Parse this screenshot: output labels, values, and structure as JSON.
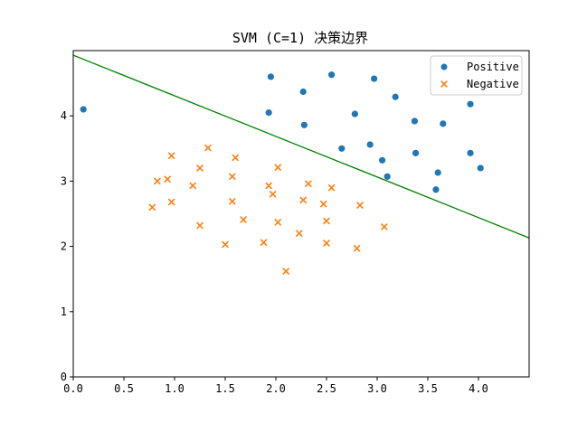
{
  "chart_data": {
    "type": "scatter",
    "title": "SVM (C=1) 决策边界",
    "xlabel": "",
    "ylabel": "",
    "xlim": [
      0.0,
      4.5
    ],
    "ylim": [
      0,
      5.0
    ],
    "xticks": [
      "0.0",
      "0.5",
      "1.0",
      "1.5",
      "2.0",
      "2.5",
      "3.0",
      "3.5",
      "4.0"
    ],
    "xtick_values": [
      0.0,
      0.5,
      1.0,
      1.5,
      2.0,
      2.5,
      3.0,
      3.5,
      4.0
    ],
    "yticks": [
      "0",
      "1",
      "2",
      "3",
      "4"
    ],
    "ytick_values": [
      0,
      1,
      2,
      3,
      4
    ],
    "grid": false,
    "legend_position": "top-right",
    "series": [
      {
        "name": "Positive",
        "marker": "circle",
        "color": "#1f77b4",
        "points": [
          [
            0.1,
            4.1
          ],
          [
            1.95,
            4.6
          ],
          [
            2.27,
            4.37
          ],
          [
            2.55,
            4.63
          ],
          [
            2.97,
            4.57
          ],
          [
            1.93,
            4.05
          ],
          [
            2.28,
            3.86
          ],
          [
            2.78,
            4.03
          ],
          [
            3.18,
            4.29
          ],
          [
            3.37,
            3.92
          ],
          [
            3.65,
            3.88
          ],
          [
            3.92,
            4.18
          ],
          [
            2.65,
            3.5
          ],
          [
            2.93,
            3.56
          ],
          [
            3.05,
            3.32
          ],
          [
            3.38,
            3.43
          ],
          [
            3.1,
            3.07
          ],
          [
            3.6,
            3.13
          ],
          [
            3.92,
            3.43
          ],
          [
            4.02,
            3.2
          ],
          [
            3.58,
            2.87
          ]
        ]
      },
      {
        "name": "Negative",
        "marker": "x",
        "color": "#ff7f0e",
        "points": [
          [
            0.97,
            3.39
          ],
          [
            1.33,
            3.51
          ],
          [
            1.6,
            3.36
          ],
          [
            0.83,
            3.0
          ],
          [
            0.93,
            3.03
          ],
          [
            1.25,
            3.2
          ],
          [
            1.18,
            2.93
          ],
          [
            1.57,
            3.07
          ],
          [
            2.02,
            3.21
          ],
          [
            2.32,
            2.96
          ],
          [
            0.78,
            2.6
          ],
          [
            0.97,
            2.68
          ],
          [
            1.57,
            2.69
          ],
          [
            1.93,
            2.93
          ],
          [
            1.97,
            2.8
          ],
          [
            2.27,
            2.71
          ],
          [
            2.47,
            2.65
          ],
          [
            2.55,
            2.9
          ],
          [
            2.83,
            2.63
          ],
          [
            1.25,
            2.32
          ],
          [
            1.68,
            2.41
          ],
          [
            2.02,
            2.37
          ],
          [
            2.5,
            2.39
          ],
          [
            3.07,
            2.3
          ],
          [
            2.23,
            2.2
          ],
          [
            1.5,
            2.03
          ],
          [
            1.88,
            2.06
          ],
          [
            2.5,
            2.05
          ],
          [
            2.8,
            1.97
          ],
          [
            2.1,
            1.62
          ]
        ]
      }
    ],
    "decision_boundary": {
      "color": "#008000",
      "points": [
        [
          0.0,
          4.93
        ],
        [
          4.5,
          2.13
        ]
      ]
    }
  }
}
